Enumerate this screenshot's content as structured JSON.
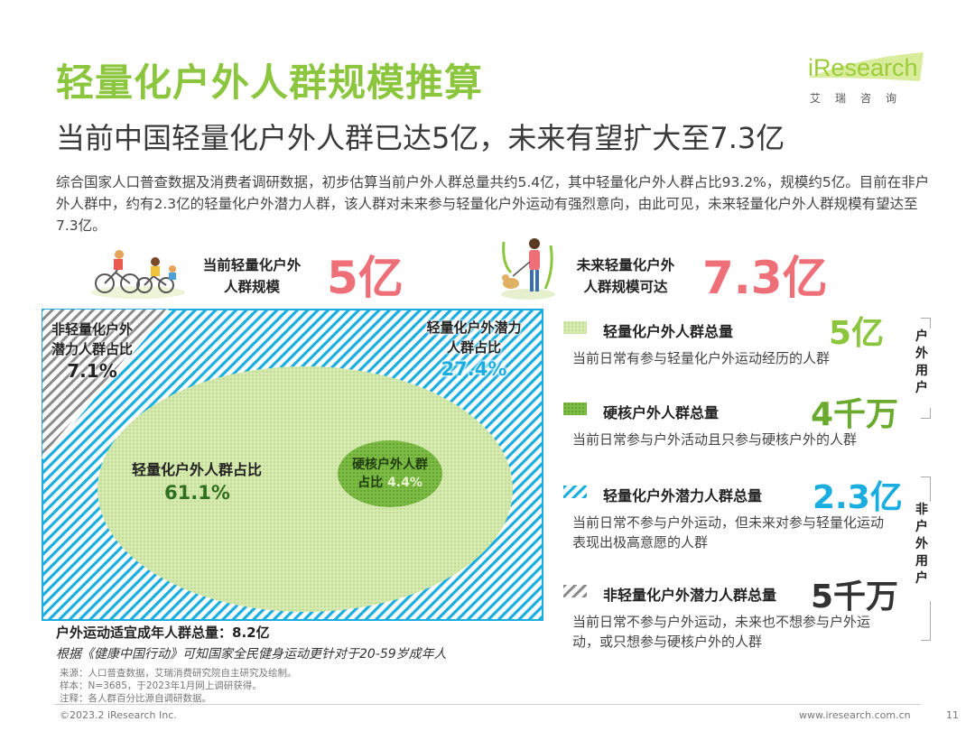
{
  "header": {
    "title": "轻量化户外人群规模推算",
    "subtitle": "当前中国轻量化户外人群已达5亿，未来有望扩大至7.3亿",
    "description": "综合国家人口普查数据及消费者调研数据，初步估算当前户外人群总量共约5.4亿，其中轻量化户外人群占比93.2%，规模约5亿。目前在非户外人群中，约有2.3亿的轻量化户外潜力人群，该人群对未来参与轻量化户外运动有强烈意向，由此可见，未来轻量化户外人群规模有望达至7.3亿。"
  },
  "logo": {
    "brand": "iResearch",
    "brand_cn": "艾瑞咨询"
  },
  "highlights": {
    "current": {
      "label_line1": "当前轻量化户外",
      "label_line2": "人群规模",
      "value": "5亿"
    },
    "future": {
      "label_line1": "未来轻量化户外",
      "label_line2": "人群规模可达",
      "value": "7.3亿"
    }
  },
  "diagram": {
    "non_light_label_line1": "非轻量化户外",
    "non_light_label_line2": "潜力人群占比",
    "non_light_value": "7.1%",
    "non_light_percent": 7.1,
    "potential_label_line1": "轻量化户外潜力",
    "potential_label_line2": "人群占比",
    "potential_value": "27.4%",
    "potential_percent": 27.4,
    "light_label": "轻量化户外人群占比",
    "light_value": "61.1%",
    "light_percent": 61.1,
    "hardcore_label_line1": "硬核户外人群",
    "hardcore_label_line2": "占比",
    "hardcore_value": "4.4%",
    "hardcore_percent": 4.4,
    "total_label": "户外运动适宜成年人群总量：8.2亿",
    "note": "根据《健康中国行动》可知国家全民健身运动更针对于20-59岁成年人"
  },
  "legend": [
    {
      "name": "轻量化户外人群总量",
      "value": "5亿",
      "desc": "当前日常有参与轻量化户外运动经历的人群",
      "color": "#8cc63f",
      "icon": "light-dots-pattern"
    },
    {
      "name": "硬核户外人群总量",
      "value": "4千万",
      "desc": "当前日常参与户外活动且只参与硬核户外的人群",
      "color": "#6aaa2f",
      "icon": "dark-dots-pattern"
    },
    {
      "name": "轻量化户外潜力人群总量",
      "value": "2.3亿",
      "desc": "当前日常不参与户外运动，但未来对参与轻量化运动表现出极高意愿的人群",
      "color": "#1aaee0",
      "icon": "blue-stripe-pattern"
    },
    {
      "name": "非轻量化户外潜力人群总量",
      "value": "5千万",
      "desc": "当前日常不参与户外运动，未来也不想参与户外运动，或只想参与硬核户外的人群",
      "color": "#333333",
      "icon": "gray-stripe-pattern"
    }
  ],
  "groups": {
    "outdoor": "户外用户",
    "non_outdoor": "非户外用户"
  },
  "footer": {
    "source": "来源：人口普查数据，艾瑞消费研究院自主研究及绘制。",
    "sample": "样本：N=3685，于2023年1月网上调研获得。",
    "note": "注释：各人群百分比源自调研数据。",
    "copyright": "©2023.2 iResearch Inc.",
    "url": "www.iresearch.com.cn",
    "page": "11"
  },
  "colors": {
    "title_green": "#8cc63f",
    "highlight_red": "#ef6f78",
    "stripe_blue": "#1aaee0",
    "dots_green": "#c8e29a"
  }
}
